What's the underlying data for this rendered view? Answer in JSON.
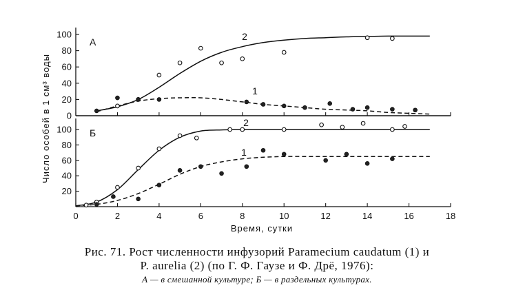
{
  "chart_data": [
    {
      "type": "scatter",
      "panel_label": "А",
      "xlim": [
        0,
        18
      ],
      "ylim": [
        0,
        110
      ],
      "x_ticks": [
        0,
        2,
        4,
        6,
        8,
        10,
        12,
        14,
        16,
        18
      ],
      "y_ticks": [
        0,
        20,
        40,
        60,
        80,
        100
      ],
      "series": [
        {
          "name": "2",
          "marker": "open-circle",
          "x": [
            2,
            3,
            4,
            5,
            6,
            7,
            8,
            10,
            14,
            15.2
          ],
          "y": [
            12,
            20,
            50,
            65,
            83,
            65,
            70,
            78,
            96,
            95
          ],
          "fit_x": [
            1,
            2,
            3,
            4,
            5,
            6,
            7,
            8,
            9,
            10,
            11,
            12,
            13,
            14,
            15,
            16,
            17
          ],
          "fit_y": [
            6,
            11,
            20,
            35,
            52,
            67,
            78,
            85,
            90,
            93,
            95,
            96,
            97,
            97.5,
            98,
            98,
            98
          ],
          "fit_style": "solid"
        },
        {
          "name": "1",
          "marker": "filled-circle",
          "x": [
            1,
            2,
            3,
            4,
            8.2,
            9,
            10,
            11,
            12.2,
            13.3,
            14,
            15.2,
            16.3
          ],
          "y": [
            6,
            22,
            20,
            20,
            17,
            14,
            12,
            10,
            15,
            8,
            10,
            8,
            7
          ],
          "fit_x": [
            1,
            2,
            3,
            4,
            5,
            6,
            7,
            8,
            9,
            10,
            11,
            12,
            13,
            14,
            15,
            16,
            17
          ],
          "fit_y": [
            5,
            12,
            18,
            21,
            22,
            22,
            20,
            17,
            14,
            12,
            10,
            8,
            7,
            6,
            4,
            3,
            2
          ],
          "fit_style": "dashed"
        }
      ]
    },
    {
      "type": "scatter",
      "panel_label": "Б",
      "xlabel": "Время, сутки",
      "ylabel": "Число особей в 1 см³ воды",
      "xlim": [
        0,
        18
      ],
      "ylim": [
        0,
        110
      ],
      "x_ticks": [
        0,
        2,
        4,
        6,
        8,
        10,
        12,
        14,
        16,
        18
      ],
      "y_ticks": [
        20,
        40,
        60,
        80,
        100
      ],
      "series": [
        {
          "name": "2",
          "marker": "open-circle",
          "x": [
            0.5,
            1,
            2,
            3,
            4,
            5,
            5.8,
            7.4,
            8,
            10,
            11.8,
            12.8,
            13.8,
            15.2,
            15.8
          ],
          "y": [
            2,
            6,
            25,
            50,
            75,
            92,
            89,
            100,
            100,
            100,
            106,
            103,
            108,
            100,
            104
          ],
          "fit_x": [
            0,
            1,
            2,
            3,
            4,
            5,
            6,
            7,
            8,
            9,
            10,
            11,
            12,
            13,
            14,
            15,
            16,
            17
          ],
          "fit_y": [
            1,
            6,
            22,
            48,
            73,
            90,
            98,
            99.5,
            100,
            100,
            100,
            100,
            100,
            100,
            100,
            100,
            100,
            100
          ],
          "fit_style": "solid"
        },
        {
          "name": "1",
          "marker": "filled-circle",
          "x": [
            1,
            1.8,
            3,
            4,
            5,
            6,
            7,
            8.2,
            9,
            10,
            12,
            13,
            14,
            15.2
          ],
          "y": [
            3,
            13,
            10,
            28,
            47,
            52,
            43,
            52,
            73,
            68,
            60,
            68,
            56,
            62
          ],
          "fit_x": [
            0,
            1,
            2,
            3,
            4,
            5,
            6,
            7,
            8,
            9,
            10,
            11,
            12,
            13,
            14,
            15,
            16,
            17
          ],
          "fit_y": [
            1,
            3,
            8,
            17,
            29,
            42,
            52,
            58,
            62,
            64,
            65,
            65,
            65,
            65,
            65,
            65,
            65,
            65
          ],
          "fit_style": "dashed"
        }
      ]
    }
  ],
  "caption": {
    "line1": "Рис. 71.  Рост  численности  инфузорий  Paramecium  caudatum  (1)  и",
    "line2": "P.  aurelia  (2)   (по  Г.  Ф.  Гаузе  и  Ф.  Дрё,  1976):",
    "line3": "А — в  смешанной  культуре;  Б — в  раздельных  культурах."
  }
}
